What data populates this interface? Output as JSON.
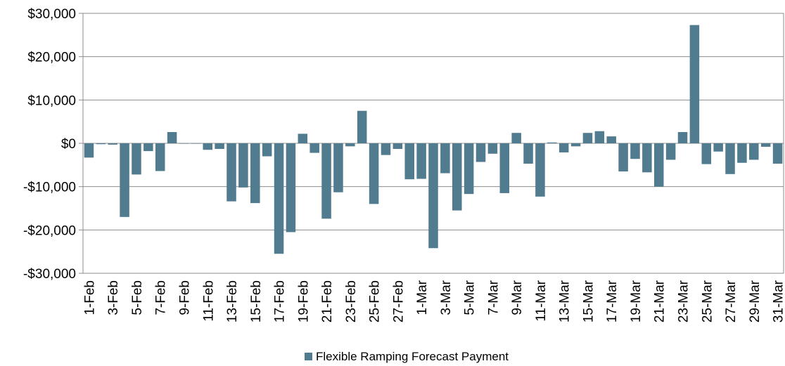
{
  "chart_data": {
    "type": "bar",
    "categories": [
      "1-Feb",
      null,
      "3-Feb",
      null,
      "5-Feb",
      null,
      "7-Feb",
      null,
      "9-Feb",
      null,
      "11-Feb",
      null,
      "13-Feb",
      null,
      "15-Feb",
      null,
      "17-Feb",
      null,
      "19-Feb",
      null,
      "21-Feb",
      null,
      "23-Feb",
      null,
      "25-Feb",
      null,
      "27-Feb",
      null,
      "1-Mar",
      null,
      "3-Mar",
      null,
      "5-Mar",
      null,
      "7-Mar",
      null,
      "9-Mar",
      null,
      "11-Mar",
      null,
      "13-Mar",
      null,
      "15-Mar",
      null,
      "17-Mar",
      null,
      "19-Mar",
      null,
      "21-Mar",
      null,
      "23-Mar",
      null,
      "25-Mar",
      null,
      "27-Mar",
      null,
      "29-Mar",
      null,
      "31-Mar"
    ],
    "series": [
      {
        "name": "Flexible Ramping Forecast Payment",
        "color": "#517b8e",
        "values": [
          -3300,
          -200,
          -300,
          -17000,
          -7200,
          -1800,
          -6400,
          2600,
          -100,
          -100,
          -1500,
          -1300,
          -13400,
          -10200,
          -13800,
          -3000,
          -25500,
          -20500,
          2200,
          -2200,
          -17400,
          -11300,
          -700,
          7500,
          -14000,
          -2700,
          -1300,
          -8300,
          -8200,
          -24200,
          -6900,
          -15500,
          -11700,
          -4300,
          -2400,
          -11500,
          2400,
          -4700,
          -12300,
          200,
          -2100,
          -700,
          2400,
          2800,
          1600,
          -6500,
          -3600,
          -6700,
          -10000,
          -3800,
          2600,
          27300,
          -4800,
          -1900,
          -7100,
          -4500,
          -3800,
          -800,
          -4700
        ]
      }
    ],
    "ylim": [
      -30000,
      30000
    ],
    "yticks": [
      {
        "value": -30000,
        "label": "-$30,000"
      },
      {
        "value": -20000,
        "label": "-$20,000"
      },
      {
        "value": -10000,
        "label": "-$10,000"
      },
      {
        "value": 0,
        "label": "$0"
      },
      {
        "value": 10000,
        "label": "$10,000"
      },
      {
        "value": 20000,
        "label": "$20,000"
      },
      {
        "value": 30000,
        "label": "$30,000"
      }
    ],
    "grid": true,
    "legend": "bottom"
  }
}
